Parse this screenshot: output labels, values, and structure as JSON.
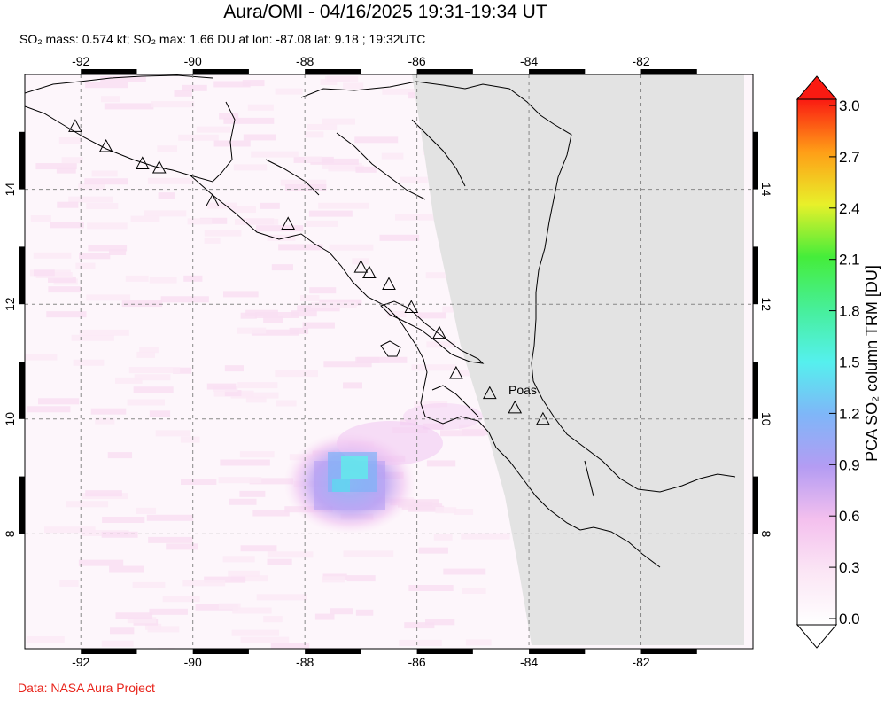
{
  "header": {
    "title": "Aura/OMI - 04/16/2025 19:31-19:34 UT",
    "subtitle": "SO₂ mass: 0.574 kt; SO₂ max: 1.66 DU at lon: -87.08 lat: 9.18 ; 19:32UTC"
  },
  "footer": {
    "credit": "Data: NASA Aura Project"
  },
  "map": {
    "lon_range": [
      -93.0,
      -80.0
    ],
    "lat_range": [
      6.0,
      16.0
    ],
    "lon_ticks": [
      "-92",
      "-90",
      "-88",
      "-86",
      "-84",
      "-82"
    ],
    "lat_ticks": [
      "8",
      "10",
      "12",
      "14"
    ],
    "no_data_color": "#e3e3e3",
    "coastline_color": "#000000",
    "volcano_label": "Poas",
    "volcanoes": [
      {
        "lon": -92.1,
        "lat": 15.1
      },
      {
        "lon": -91.55,
        "lat": 14.75
      },
      {
        "lon": -90.9,
        "lat": 14.45
      },
      {
        "lon": -90.6,
        "lat": 14.38
      },
      {
        "lon": -89.65,
        "lat": 13.8
      },
      {
        "lon": -88.3,
        "lat": 13.4
      },
      {
        "lon": -87.0,
        "lat": 12.65
      },
      {
        "lon": -86.85,
        "lat": 12.55
      },
      {
        "lon": -86.5,
        "lat": 12.35
      },
      {
        "lon": -86.1,
        "lat": 11.95
      },
      {
        "lon": -85.6,
        "lat": 11.5
      },
      {
        "lon": -85.3,
        "lat": 10.8
      },
      {
        "lon": -84.7,
        "lat": 10.45
      },
      {
        "lon": -84.25,
        "lat": 10.2
      },
      {
        "lon": -83.75,
        "lat": 10.0
      }
    ],
    "so2_plume": [
      {
        "lon": -87.1,
        "lat": 9.1,
        "du": 1.66
      },
      {
        "lon": -87.0,
        "lat": 9.3,
        "du": 1.4
      },
      {
        "lon": -87.4,
        "lat": 8.8,
        "du": 1.1
      },
      {
        "lon": -86.7,
        "lat": 9.5,
        "du": 0.8
      },
      {
        "lon": -87.6,
        "lat": 8.6,
        "du": 0.7
      },
      {
        "lon": -86.3,
        "lat": 9.9,
        "du": 0.4
      },
      {
        "lon": -85.8,
        "lat": 10.1,
        "du": 0.3
      }
    ]
  },
  "colorbar": {
    "title": "PCA SO₂ column TRM [DU]",
    "ticks": [
      "3.0",
      "2.7",
      "2.4",
      "2.1",
      "1.8",
      "1.5",
      "1.2",
      "0.9",
      "0.6",
      "0.3",
      "0.0"
    ],
    "min": 0.0,
    "max": 3.0
  }
}
